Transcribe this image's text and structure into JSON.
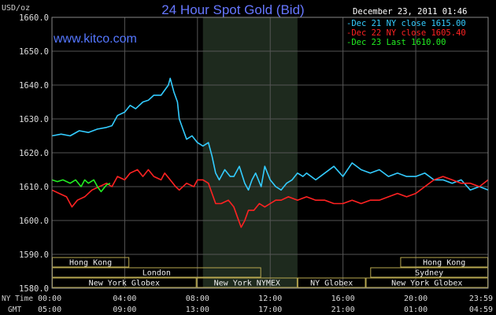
{
  "header": {
    "title": "24 Hour Spot Gold (Bid)",
    "unit": "USD/oz",
    "date": "December 23, 2011 01:46",
    "watermark": "www.kitco.com"
  },
  "legend": [
    {
      "prefix": "-",
      "text": "Dec 21 NY close 1615.00",
      "color": "#33ccff"
    },
    {
      "prefix": "-",
      "text": "Dec 22 NY close 1605.40",
      "color": "#ff2222"
    },
    {
      "prefix": "-",
      "text": "Dec 23 Last 1610.00",
      "color": "#22ee22"
    }
  ],
  "axis_titles": {
    "ny_time": "NY Time",
    "gmt": "GMT"
  },
  "sessions": [
    {
      "label": "Hong Kong",
      "row": 0,
      "start": 0.0,
      "end": 4.25
    },
    {
      "label": "Hong Kong",
      "row": 0,
      "start": 19.15,
      "end": 23.98
    },
    {
      "label": "London",
      "row": 1,
      "start": 0.0,
      "end": 11.5
    },
    {
      "label": "Sydney",
      "row": 1,
      "start": 17.5,
      "end": 23.98
    },
    {
      "label": "New York Globex",
      "row": 2,
      "start": 0.0,
      "end": 7.95
    },
    {
      "label": "New York NYMEX",
      "row": 2,
      "start": 7.95,
      "end": 13.5
    },
    {
      "label": "NY Globex",
      "row": 2,
      "start": 13.5,
      "end": 17.25
    },
    {
      "label": "New York Globex",
      "row": 2,
      "start": 17.25,
      "end": 23.98
    }
  ],
  "chart_data": {
    "type": "line",
    "title": "24 Hour Spot Gold (Bid)",
    "ylabel": "USD/oz",
    "ylim": [
      1580,
      1660
    ],
    "xlim": [
      0,
      23.98
    ],
    "yticks": [
      1580,
      1590,
      1600,
      1610,
      1620,
      1630,
      1640,
      1650,
      1660
    ],
    "ytick_labels": [
      "1580.0",
      "1590.0",
      "1600.0",
      "1610.0",
      "1620.0",
      "1630.0",
      "1640.0",
      "1650.0",
      "1660.0"
    ],
    "xticks": [
      0,
      4,
      8,
      12,
      16,
      20,
      23.98
    ],
    "x_labels_ny": [
      "00:00",
      "04:00",
      "08:00",
      "12:00",
      "16:00",
      "20:00",
      "23:59"
    ],
    "x_labels_gmt": [
      "05:00",
      "09:00",
      "13:00",
      "17:00",
      "21:00",
      "01:00",
      "04:59"
    ],
    "highlight_range": [
      8.3,
      13.5
    ],
    "grid": true,
    "legend_position": "top-right",
    "series": [
      {
        "name": "Dec 21 NY close 1615.00",
        "color": "#33ccff",
        "points": [
          [
            0,
            1625
          ],
          [
            0.5,
            1625.5
          ],
          [
            1,
            1625
          ],
          [
            1.5,
            1626.5
          ],
          [
            2,
            1626
          ],
          [
            2.5,
            1627
          ],
          [
            3,
            1627.5
          ],
          [
            3.3,
            1628
          ],
          [
            3.6,
            1631
          ],
          [
            4,
            1632
          ],
          [
            4.3,
            1634
          ],
          [
            4.6,
            1633
          ],
          [
            5,
            1635
          ],
          [
            5.3,
            1635.5
          ],
          [
            5.6,
            1637
          ],
          [
            6,
            1637
          ],
          [
            6.2,
            1638.5
          ],
          [
            6.4,
            1640
          ],
          [
            6.5,
            1642
          ],
          [
            6.7,
            1638
          ],
          [
            6.9,
            1635
          ],
          [
            7,
            1630
          ],
          [
            7.2,
            1627
          ],
          [
            7.4,
            1624
          ],
          [
            7.7,
            1625
          ],
          [
            8,
            1623
          ],
          [
            8.3,
            1622
          ],
          [
            8.6,
            1623
          ],
          [
            8.8,
            1619
          ],
          [
            9,
            1614
          ],
          [
            9.2,
            1612
          ],
          [
            9.5,
            1615
          ],
          [
            9.8,
            1613
          ],
          [
            10,
            1613
          ],
          [
            10.3,
            1616
          ],
          [
            10.6,
            1611
          ],
          [
            10.8,
            1609
          ],
          [
            11,
            1612
          ],
          [
            11.2,
            1614
          ],
          [
            11.5,
            1610
          ],
          [
            11.7,
            1616
          ],
          [
            12,
            1612
          ],
          [
            12.3,
            1610
          ],
          [
            12.6,
            1609
          ],
          [
            12.9,
            1611
          ],
          [
            13.2,
            1612
          ],
          [
            13.5,
            1614
          ],
          [
            13.8,
            1613
          ],
          [
            14,
            1614
          ],
          [
            14.5,
            1612
          ],
          [
            15,
            1614
          ],
          [
            15.5,
            1616
          ],
          [
            16,
            1613
          ],
          [
            16.5,
            1617
          ],
          [
            17,
            1615
          ],
          [
            17.5,
            1614
          ],
          [
            18,
            1615
          ],
          [
            18.5,
            1613
          ],
          [
            19,
            1614
          ],
          [
            19.5,
            1613
          ],
          [
            20,
            1613
          ],
          [
            20.5,
            1614
          ],
          [
            21,
            1612
          ],
          [
            21.5,
            1612
          ],
          [
            22,
            1611
          ],
          [
            22.5,
            1612
          ],
          [
            23,
            1609
          ],
          [
            23.5,
            1610
          ],
          [
            23.98,
            1609
          ]
        ]
      },
      {
        "name": "Dec 22 NY close 1605.40",
        "color": "#ff2222",
        "points": [
          [
            0,
            1609
          ],
          [
            0.4,
            1608
          ],
          [
            0.8,
            1607
          ],
          [
            1.1,
            1604
          ],
          [
            1.4,
            1606
          ],
          [
            1.8,
            1607
          ],
          [
            2.2,
            1609
          ],
          [
            2.6,
            1610
          ],
          [
            3,
            1611
          ],
          [
            3.3,
            1610
          ],
          [
            3.6,
            1613
          ],
          [
            4,
            1612
          ],
          [
            4.3,
            1614
          ],
          [
            4.7,
            1615
          ],
          [
            5,
            1613
          ],
          [
            5.3,
            1615
          ],
          [
            5.6,
            1613
          ],
          [
            6,
            1612
          ],
          [
            6.2,
            1614
          ],
          [
            6.5,
            1612
          ],
          [
            6.8,
            1610
          ],
          [
            7,
            1609
          ],
          [
            7.4,
            1611
          ],
          [
            7.8,
            1610
          ],
          [
            8,
            1612
          ],
          [
            8.3,
            1612
          ],
          [
            8.6,
            1611
          ],
          [
            8.8,
            1608
          ],
          [
            9,
            1605
          ],
          [
            9.3,
            1605
          ],
          [
            9.7,
            1606
          ],
          [
            10,
            1604
          ],
          [
            10.2,
            1601
          ],
          [
            10.4,
            1598
          ],
          [
            10.6,
            1600
          ],
          [
            10.8,
            1603
          ],
          [
            11.1,
            1603
          ],
          [
            11.4,
            1605
          ],
          [
            11.7,
            1604
          ],
          [
            12,
            1605
          ],
          [
            12.3,
            1606
          ],
          [
            12.6,
            1606
          ],
          [
            13,
            1607
          ],
          [
            13.5,
            1606
          ],
          [
            14,
            1607
          ],
          [
            14.5,
            1606
          ],
          [
            15,
            1606
          ],
          [
            15.5,
            1605
          ],
          [
            16,
            1605
          ],
          [
            16.5,
            1606
          ],
          [
            17,
            1605
          ],
          [
            17.5,
            1606
          ],
          [
            18,
            1606
          ],
          [
            18.5,
            1607
          ],
          [
            19,
            1608
          ],
          [
            19.5,
            1607
          ],
          [
            20,
            1608
          ],
          [
            20.5,
            1610
          ],
          [
            21,
            1612
          ],
          [
            21.5,
            1613
          ],
          [
            22,
            1612
          ],
          [
            22.5,
            1611
          ],
          [
            23,
            1611
          ],
          [
            23.5,
            1610
          ],
          [
            23.98,
            1612
          ]
        ]
      },
      {
        "name": "Dec 23 Last 1610.00",
        "color": "#22ee22",
        "points": [
          [
            0,
            1612
          ],
          [
            0.3,
            1611.5
          ],
          [
            0.6,
            1612
          ],
          [
            1,
            1611
          ],
          [
            1.3,
            1612
          ],
          [
            1.6,
            1610
          ],
          [
            1.8,
            1612
          ],
          [
            2,
            1611
          ],
          [
            2.3,
            1612
          ],
          [
            2.5,
            1610
          ],
          [
            2.7,
            1608.5
          ],
          [
            3,
            1610.5
          ],
          [
            3.2,
            1611
          ]
        ]
      }
    ]
  }
}
